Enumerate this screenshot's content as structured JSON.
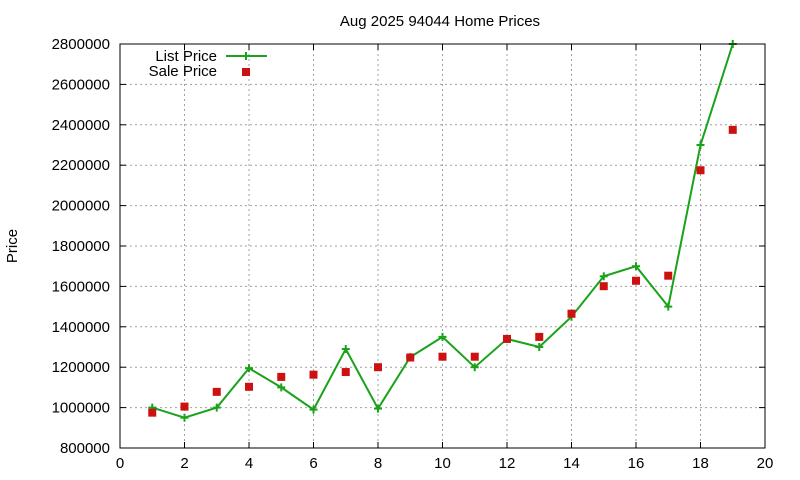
{
  "chart_data": {
    "type": "line",
    "title": "Aug 2025 94044 Home Prices",
    "xlabel": "",
    "ylabel": "Price",
    "xlim": [
      0,
      20
    ],
    "ylim": [
      800000,
      2800000
    ],
    "x_ticks": [
      0,
      2,
      4,
      6,
      8,
      10,
      12,
      14,
      16,
      18,
      20
    ],
    "y_ticks": [
      800000,
      1000000,
      1200000,
      1400000,
      1600000,
      1800000,
      2000000,
      2200000,
      2400000,
      2600000,
      2800000
    ],
    "grid": true,
    "legend_position": "top-left",
    "series": [
      {
        "name": "List Price",
        "style": "line-with-plus-markers",
        "color": "#1aa31a",
        "x": [
          1,
          2,
          3,
          4,
          5,
          6,
          7,
          8,
          9,
          10,
          11,
          12,
          13,
          14,
          15,
          16,
          17,
          18,
          19
        ],
        "values": [
          1000000,
          950000,
          1000000,
          1195000,
          1100000,
          990000,
          1290000,
          995000,
          1250000,
          1350000,
          1200000,
          1340000,
          1300000,
          1450000,
          1650000,
          1700000,
          1500000,
          2300000,
          2800000
        ]
      },
      {
        "name": "Sale Price",
        "style": "square-markers",
        "color": "#cc1111",
        "x": [
          1,
          2,
          3,
          4,
          5,
          6,
          7,
          8,
          9,
          10,
          11,
          12,
          13,
          14,
          15,
          16,
          17,
          18,
          19
        ],
        "values": [
          975000,
          1005000,
          1078000,
          1103000,
          1152000,
          1163000,
          1176000,
          1200000,
          1248000,
          1252000,
          1252000,
          1340000,
          1350000,
          1465000,
          1601000,
          1628000,
          1653000,
          2175000,
          2375000
        ]
      }
    ]
  }
}
